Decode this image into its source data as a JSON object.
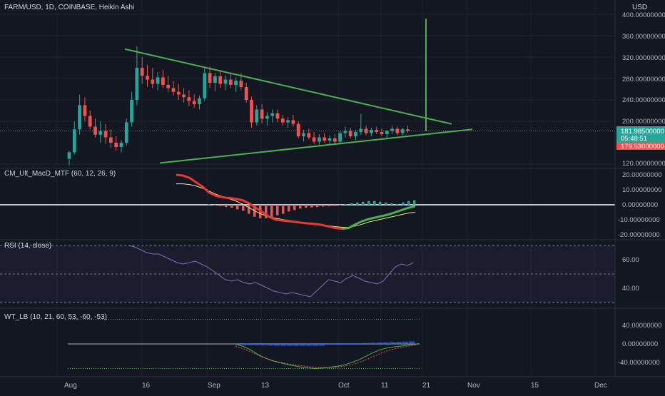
{
  "header": {
    "symbol_title": "FARM/USD, 1D, COINBASE, Heikin Ashi",
    "currency": "USD"
  },
  "price_labels": {
    "last": "181.98500000",
    "countdown": "05:48:51",
    "low_marker": "179.53000000"
  },
  "colors": {
    "background": "#131722",
    "bull": "#26a69a",
    "bear": "#ef5350",
    "trendline": "#4caf50",
    "grid": "#1e222d",
    "axis_text": "#b2b5be"
  },
  "x_axis": {
    "labels": [
      "Aug",
      "16",
      "Sep",
      "13",
      "Oct",
      "11",
      "21",
      "Nov",
      "15",
      "Dec"
    ]
  },
  "chart_data": [
    {
      "type": "candlestick",
      "title": "FARM/USD, 1D, COINBASE, Heikin Ashi",
      "y_axis_labels": [
        "400.00000000",
        "360.00000000",
        "320.00000000",
        "280.00000000",
        "240.00000000",
        "200.00000000",
        "160.00000000",
        "120.00000000"
      ],
      "ylim": [
        120,
        400
      ],
      "ohlc": [
        [
          130,
          145,
          118,
          142
        ],
        [
          142,
          200,
          138,
          185
        ],
        [
          185,
          250,
          175,
          230
        ],
        [
          230,
          245,
          200,
          210
        ],
        [
          210,
          220,
          185,
          190
        ],
        [
          190,
          205,
          170,
          175
        ],
        [
          175,
          200,
          160,
          182
        ],
        [
          182,
          195,
          158,
          170
        ],
        [
          170,
          185,
          150,
          160
        ],
        [
          160,
          172,
          145,
          152
        ],
        [
          152,
          165,
          142,
          160
        ],
        [
          160,
          205,
          155,
          198
        ],
        [
          198,
          255,
          190,
          240
        ],
        [
          240,
          340,
          230,
          300
        ],
        [
          300,
          320,
          270,
          285
        ],
        [
          285,
          305,
          265,
          278
        ],
        [
          278,
          300,
          262,
          270
        ],
        [
          270,
          292,
          258,
          282
        ],
        [
          282,
          296,
          262,
          268
        ],
        [
          268,
          285,
          255,
          262
        ],
        [
          262,
          275,
          248,
          255
        ],
        [
          255,
          270,
          240,
          250
        ],
        [
          250,
          262,
          235,
          245
        ],
        [
          245,
          258,
          228,
          238
        ],
        [
          238,
          250,
          225,
          232
        ],
        [
          232,
          248,
          222,
          243
        ],
        [
          243,
          300,
          238,
          290
        ],
        [
          290,
          302,
          262,
          272
        ],
        [
          272,
          290,
          256,
          284
        ],
        [
          284,
          296,
          262,
          270
        ],
        [
          270,
          286,
          258,
          278
        ],
        [
          278,
          290,
          262,
          268
        ],
        [
          268,
          282,
          255,
          276
        ],
        [
          276,
          290,
          258,
          264
        ],
        [
          264,
          272,
          235,
          240
        ],
        [
          240,
          246,
          188,
          198
        ],
        [
          198,
          230,
          192,
          222
        ],
        [
          222,
          232,
          196,
          205
        ],
        [
          205,
          218,
          192,
          210
        ],
        [
          210,
          222,
          198,
          215
        ],
        [
          215,
          222,
          198,
          205
        ],
        [
          205,
          212,
          192,
          198
        ],
        [
          198,
          208,
          188,
          202
        ],
        [
          202,
          212,
          190,
          195
        ],
        [
          195,
          200,
          168,
          172
        ],
        [
          172,
          184,
          162,
          178
        ],
        [
          178,
          186,
          166,
          170
        ],
        [
          170,
          180,
          158,
          162
        ],
        [
          162,
          176,
          156,
          170
        ],
        [
          170,
          178,
          160,
          164
        ],
        [
          164,
          174,
          158,
          168
        ],
        [
          168,
          176,
          158,
          162
        ],
        [
          162,
          182,
          158,
          178
        ],
        [
          178,
          190,
          170,
          182
        ],
        [
          182,
          188,
          168,
          172
        ],
        [
          172,
          184,
          165,
          180
        ],
        [
          180,
          214,
          175,
          186
        ],
        [
          186,
          192,
          174,
          178
        ],
        [
          178,
          188,
          172,
          184
        ],
        [
          184,
          190,
          176,
          180
        ],
        [
          180,
          186,
          172,
          176
        ],
        [
          176,
          184,
          168,
          182
        ],
        [
          182,
          192,
          176,
          186
        ],
        [
          186,
          190,
          174,
          178
        ],
        [
          178,
          188,
          174,
          185
        ],
        [
          185,
          192,
          178,
          182
        ]
      ],
      "triangle_upper": {
        "x1": "Aug 11",
        "y1": 335,
        "x2": "Oct 24",
        "y2": 167
      },
      "triangle_lower": {
        "x1": "Aug 20",
        "y1": 122,
        "x2": "Oct 28",
        "y2": 177
      },
      "spike": {
        "date": "Oct 20",
        "low": 182,
        "high": 392
      }
    },
    {
      "type": "line",
      "title": "CM_Ult_MacD_MTF (60, 12, 26, 9)",
      "y_axis_labels": [
        "20.00000000",
        "10.00000000",
        "0.00000000",
        "-10.00000000",
        "-20.00000000"
      ],
      "ylim": [
        -24,
        24
      ],
      "series": [
        {
          "values": [
            20,
            19.5,
            18,
            15,
            12,
            8,
            6,
            5,
            4.5,
            4,
            3,
            1,
            -2,
            -5,
            -8,
            -10,
            -10.5,
            -11,
            -11.5,
            -12,
            -12.5,
            -12.8,
            -13.5,
            -14.5,
            -15.5,
            -16,
            -15.5,
            -13,
            -11,
            -9.5,
            -8.5,
            -7.5,
            -6.5,
            -5,
            -3.5,
            -2,
            -1
          ]
        },
        {
          "values": [
            14,
            14,
            13.5,
            12.5,
            11,
            9,
            7,
            5.5,
            4,
            2.5,
            0.5,
            -2,
            -4.5,
            -6.5,
            -8,
            -9,
            -9.8,
            -10.5,
            -11,
            -11.8,
            -12.2,
            -12.8,
            -13.3,
            -14,
            -14.6,
            -15,
            -15,
            -14.2,
            -13,
            -11.5,
            -10.5,
            -9.5,
            -8.5,
            -7.5,
            -6.5,
            -5.5,
            -5
          ]
        }
      ],
      "histogram": [
        0.5,
        -0.5,
        -1,
        -1.5,
        -2,
        -3,
        -4,
        -6,
        -8,
        -9,
        -9,
        -8.5,
        -7,
        -6,
        -4.5,
        -3.5,
        -2.5,
        -2,
        -1.8,
        -1.5,
        -1.2,
        -1,
        -0.8,
        -0.5,
        0.5,
        1,
        1.5,
        2,
        2.5,
        2.5,
        2,
        1.5,
        1,
        0.5,
        1.5,
        2.5,
        3
      ]
    },
    {
      "type": "line",
      "title": "RSI (14, close)",
      "y_axis_labels": [
        "60.00",
        "40.00"
      ],
      "ylim": [
        25,
        80
      ],
      "bands": [
        30,
        50,
        70
      ],
      "series": [
        {
          "values": [
            70,
            69,
            67,
            65,
            64,
            64,
            62,
            60,
            58,
            57,
            58,
            59,
            57,
            55,
            52,
            49,
            46,
            45,
            46,
            44,
            43,
            44,
            42,
            40,
            38,
            37,
            36,
            37,
            36,
            35,
            34,
            38,
            42,
            46,
            45,
            44,
            47,
            49,
            47,
            45,
            44,
            43,
            45,
            50,
            55,
            57,
            56,
            58
          ]
        }
      ]
    },
    {
      "type": "line",
      "title": "WT_LB (10, 21, 60, 53, -60, -53)",
      "y_axis_labels": [
        "40.00000000",
        "0.00000000",
        "-40.00000000"
      ],
      "ylim": [
        -62,
        62
      ],
      "levels": [
        53,
        0,
        -53
      ],
      "series": [
        {
          "values": [
            0,
            -5,
            -12,
            -22,
            -30,
            -36,
            -40,
            -44,
            -47,
            -50,
            -52,
            -53,
            -52,
            -50,
            -48,
            -45,
            -40,
            -34,
            -26,
            -18,
            -12,
            -8,
            -6,
            -4,
            -2,
            0
          ]
        },
        {
          "values": [
            -5,
            -10,
            -16,
            -24,
            -30,
            -35,
            -39,
            -42,
            -45,
            -47,
            -49,
            -50,
            -51,
            -51,
            -50,
            -48,
            -45,
            -40,
            -34,
            -27,
            -20,
            -14,
            -10,
            -7,
            -4,
            -2
          ]
        }
      ]
    }
  ]
}
